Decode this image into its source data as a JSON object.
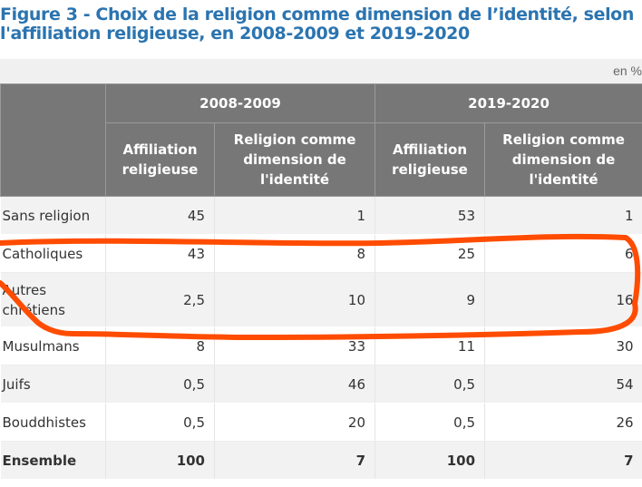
{
  "title": "Figure 3 - Choix de la religion comme dimension de l’identité, selon l'affiliation religieuse, en 2008-2009 et 2019-2020",
  "unit": "en %",
  "periods": [
    "2008-2009",
    "2019-2020"
  ],
  "col_headers": [
    "Affiliation religieuse",
    "Religion comme dimension de l'identité",
    "Affiliation religieuse",
    "Religion comme dimension de l'identité"
  ],
  "rows": [
    {
      "label": "Sans religion",
      "values": [
        "45",
        "1",
        "53",
        "1"
      ]
    },
    {
      "label": "Catholiques",
      "values": [
        "43",
        "8",
        "25",
        "6"
      ]
    },
    {
      "label": "Autres chrétiens",
      "values": [
        "2,5",
        "10",
        "9",
        "16"
      ]
    },
    {
      "label": "Musulmans",
      "values": [
        "8",
        "33",
        "11",
        "30"
      ]
    },
    {
      "label": "Juifs",
      "values": [
        "0,5",
        "46",
        "0,5",
        "54"
      ]
    },
    {
      "label": "Bouddhistes",
      "values": [
        "0,5",
        "20",
        "0,5",
        "26"
      ]
    },
    {
      "label": "Ensemble",
      "values": [
        "100",
        "7",
        "100",
        "7"
      ]
    }
  ],
  "colors": {
    "title": "#2b74b0",
    "header_bg": "#777777",
    "annotation": "#ff4c00"
  }
}
